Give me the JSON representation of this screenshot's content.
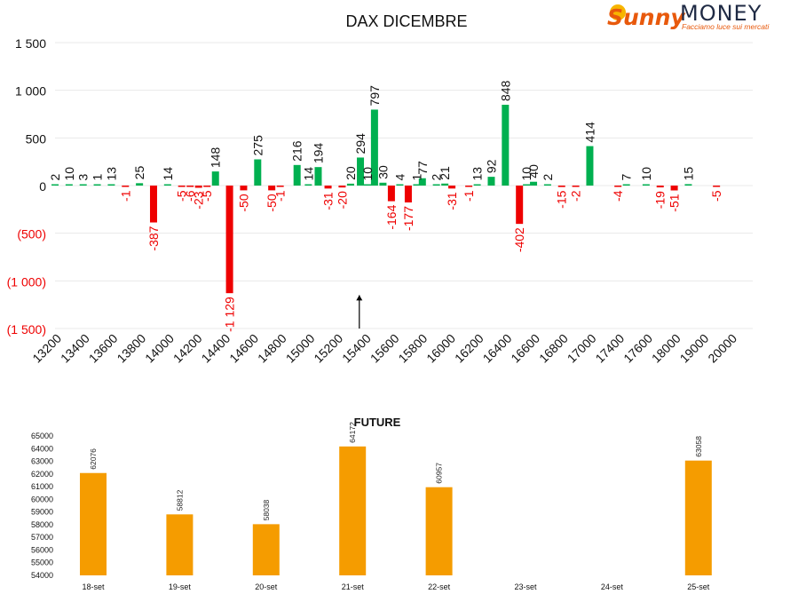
{
  "logo": {
    "word1": "Sunny",
    "word2": "MONEY",
    "tagline": "Facciamo luce sui mercati",
    "accent": "#e8590c",
    "dark": "#1f2a44"
  },
  "colors": {
    "positive": "#00b050",
    "negative": "#ee0000",
    "future": "#f59c00",
    "grid": "#e9e9e9"
  },
  "chart_data": [
    {
      "type": "bar",
      "title": "DAX DICEMBRE",
      "xlabel": "",
      "ylabel": "",
      "ylim": [
        -1500,
        1500
      ],
      "yticks": [
        1500,
        1000,
        500,
        0,
        -500,
        -1000,
        -1500
      ],
      "ytick_labels": [
        "1 500",
        "1 000",
        "500",
        "0",
        "(500)",
        "(1 000)",
        "(1 500)"
      ],
      "categories": [
        "13200",
        "13400",
        "13600",
        "13800",
        "14000",
        "14200",
        "14400",
        "14600",
        "14800",
        "15000",
        "15200",
        "15400",
        "15600",
        "15800",
        "16000",
        "16200",
        "16400",
        "16600",
        "16800",
        "17000",
        "17400",
        "17600",
        "18000",
        "19000",
        "20000"
      ],
      "bars": [
        {
          "cat": 0.0,
          "value": 2,
          "label": "2"
        },
        {
          "cat": 0.5,
          "value": 10,
          "label": "10"
        },
        {
          "cat": 1.0,
          "value": 3,
          "label": "3"
        },
        {
          "cat": 1.5,
          "value": 1,
          "label": "1"
        },
        {
          "cat": 2.0,
          "value": 13,
          "label": "13"
        },
        {
          "cat": 2.5,
          "value": -1,
          "label": "-1"
        },
        {
          "cat": 3.0,
          "value": 25,
          "label": "25"
        },
        {
          "cat": 3.5,
          "value": -387,
          "label": "-387"
        },
        {
          "cat": 4.0,
          "value": 14,
          "label": "14"
        },
        {
          "cat": 4.5,
          "value": -5,
          "label": "-5"
        },
        {
          "cat": 4.8,
          "value": -6,
          "label": "-6"
        },
        {
          "cat": 5.1,
          "value": -23,
          "label": "-23"
        },
        {
          "cat": 5.4,
          "value": -5,
          "label": "-5"
        },
        {
          "cat": 5.7,
          "value": 148,
          "label": "148"
        },
        {
          "cat": 6.2,
          "value": -1129,
          "label": "-1 129"
        },
        {
          "cat": 6.7,
          "value": -50,
          "label": "-50"
        },
        {
          "cat": 7.2,
          "value": 275,
          "label": "275"
        },
        {
          "cat": 7.7,
          "value": -50,
          "label": "-50"
        },
        {
          "cat": 8.0,
          "value": -1,
          "label": "-1"
        },
        {
          "cat": 8.6,
          "value": 216,
          "label": "216"
        },
        {
          "cat": 9.0,
          "value": 14,
          "label": "14"
        },
        {
          "cat": 9.35,
          "value": 194,
          "label": "194"
        },
        {
          "cat": 9.7,
          "value": -31,
          "label": "-31"
        },
        {
          "cat": 10.2,
          "value": -20,
          "label": "-20"
        },
        {
          "cat": 10.5,
          "value": 20,
          "label": "20"
        },
        {
          "cat": 10.85,
          "value": 294,
          "label": "294"
        },
        {
          "cat": 11.1,
          "value": 10,
          "label": "10"
        },
        {
          "cat": 11.35,
          "value": 797,
          "label": "797"
        },
        {
          "cat": 11.65,
          "value": 30,
          "label": "30"
        },
        {
          "cat": 11.95,
          "value": -164,
          "label": "-164"
        },
        {
          "cat": 12.25,
          "value": 4,
          "label": "4"
        },
        {
          "cat": 12.55,
          "value": -177,
          "label": "-177"
        },
        {
          "cat": 12.85,
          "value": 1,
          "label": "1"
        },
        {
          "cat": 13.05,
          "value": 77,
          "label": "77"
        },
        {
          "cat": 13.55,
          "value": 2,
          "label": "2"
        },
        {
          "cat": 13.85,
          "value": 21,
          "label": "21"
        },
        {
          "cat": 14.1,
          "value": -31,
          "label": "-31"
        },
        {
          "cat": 14.7,
          "value": -1,
          "label": "-1"
        },
        {
          "cat": 15.0,
          "value": 13,
          "label": "13"
        },
        {
          "cat": 15.5,
          "value": 92,
          "label": "92"
        },
        {
          "cat": 16.0,
          "value": 848,
          "label": "848"
        },
        {
          "cat": 16.5,
          "value": -402,
          "label": "-402"
        },
        {
          "cat": 16.75,
          "value": 10,
          "label": "10"
        },
        {
          "cat": 17.0,
          "value": 40,
          "label": "40"
        },
        {
          "cat": 17.5,
          "value": 2,
          "label": "2"
        },
        {
          "cat": 18.0,
          "value": -15,
          "label": "-15"
        },
        {
          "cat": 18.5,
          "value": -2,
          "label": "-2"
        },
        {
          "cat": 19.0,
          "value": 414,
          "label": "414"
        },
        {
          "cat": 20.0,
          "value": -4,
          "label": "-4"
        },
        {
          "cat": 20.3,
          "value": 7,
          "label": "7"
        },
        {
          "cat": 21.0,
          "value": 10,
          "label": "10"
        },
        {
          "cat": 21.5,
          "value": -19,
          "label": "-19"
        },
        {
          "cat": 22.0,
          "value": -51,
          "label": "-51"
        },
        {
          "cat": 22.5,
          "value": 15,
          "label": "15"
        },
        {
          "cat": 23.5,
          "value": -5,
          "label": "-5"
        }
      ],
      "marker": {
        "cat": 11.0,
        "from": -1500,
        "to": -1150
      }
    },
    {
      "type": "bar",
      "title": "FUTURE",
      "xlabel": "",
      "ylabel": "",
      "ylim": [
        54000,
        65000
      ],
      "yticks": [
        54000,
        55000,
        56000,
        57000,
        58000,
        59000,
        60000,
        61000,
        62000,
        63000,
        64000,
        65000
      ],
      "categories": [
        "18-set",
        "19-set",
        "20-set",
        "21-set",
        "22-set",
        "23-set",
        "24-set",
        "25-set"
      ],
      "values": [
        62076,
        58812,
        58038,
        64172,
        60957,
        null,
        null,
        63058
      ],
      "labels": [
        "62076",
        "58812",
        "58038",
        "64172",
        "60957",
        "",
        "",
        "63058"
      ]
    }
  ]
}
